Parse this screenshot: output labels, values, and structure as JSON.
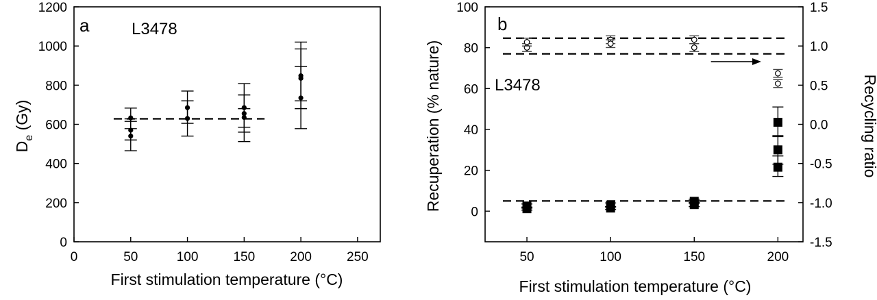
{
  "chart_data": [
    {
      "panel": "a",
      "type": "scatter",
      "annotation_letter": "a",
      "annotation_label": "L3478",
      "xlabel": "First stimulation temperature (°C)",
      "ylabel_main": "D",
      "ylabel_sub": "e",
      "ylabel_unit": " (Gy)",
      "xlim": [
        0,
        270
      ],
      "ylim": [
        0,
        1200
      ],
      "xticks": [
        0,
        50,
        100,
        150,
        200,
        250
      ],
      "yticks": [
        0,
        200,
        400,
        600,
        800,
        1000,
        1200
      ],
      "grid": false,
      "reference_line": {
        "y": 628,
        "x_from": 35,
        "x_to": 168,
        "style": "dashed"
      },
      "points": [
        {
          "x": 50,
          "y": 633,
          "err_low": 578,
          "err_high": 683
        },
        {
          "x": 50,
          "y": 570,
          "err_low": 520,
          "err_high": 628
        },
        {
          "x": 50,
          "y": 540,
          "err_low": 465,
          "err_high": 615
        },
        {
          "x": 100,
          "y": 685,
          "err_low": 605,
          "err_high": 770
        },
        {
          "x": 100,
          "y": 630,
          "err_low": 540,
          "err_high": 720
        },
        {
          "x": 150,
          "y": 685,
          "err_low": 585,
          "err_high": 808
        },
        {
          "x": 150,
          "y": 655,
          "err_low": 560,
          "err_high": 750
        },
        {
          "x": 150,
          "y": 635,
          "err_low": 512,
          "err_high": 680
        },
        {
          "x": 200,
          "y": 848,
          "err_low": 680,
          "err_high": 1020
        },
        {
          "x": 200,
          "y": 835,
          "err_low": 720,
          "err_high": 985
        },
        {
          "x": 200,
          "y": 735,
          "err_low": 578,
          "err_high": 895
        }
      ]
    },
    {
      "panel": "b",
      "type": "scatter",
      "annotation_letter": "b",
      "annotation_label": "L3478",
      "xlabel": "First stimulation temperature (°C)",
      "ylabel_left": "Recuperation (% nature)",
      "ylabel_right": "Recycling ratio",
      "xlim": [
        25,
        215
      ],
      "ylim_left": [
        -15,
        100
      ],
      "ylim_right": [
        -1.5,
        1.5
      ],
      "xticks": [
        50,
        100,
        150,
        200
      ],
      "yticks_left": [
        0,
        20,
        40,
        60,
        80,
        100
      ],
      "yticks_right": [
        -1.5,
        -1.0,
        -0.5,
        0.0,
        0.5,
        1.0,
        1.5
      ],
      "ytick_labels_right": [
        "-1.5",
        "-1.0",
        "-0.5",
        "0.0",
        "0.5",
        "1.0",
        "1.5"
      ],
      "grid": false,
      "reference_lines": [
        {
          "y": 5,
          "axis": "left",
          "style": "dashed"
        },
        {
          "y": 1.1,
          "axis": "right",
          "style": "dashed"
        },
        {
          "y": 0.9,
          "axis": "right",
          "style": "dashed"
        }
      ],
      "arrow": {
        "x_from": 160,
        "x_to": 190,
        "y_right": 0.8,
        "points_to": "right-axis"
      },
      "series": [
        {
          "name": "",
          "marker": "filled-square",
          "axis": "left",
          "points": [
            {
              "x": 50,
              "y": 2.5,
              "err_low": 1.5,
              "err_high": 3.5
            },
            {
              "x": 50,
              "y": 1.2,
              "err_low": 0.5,
              "err_high": 2
            },
            {
              "x": 100,
              "y": 3,
              "err_low": 2,
              "err_high": 4
            },
            {
              "x": 100,
              "y": 1.5,
              "err_low": 0.8,
              "err_high": 2.2
            },
            {
              "x": 150,
              "y": 4.8,
              "err_low": 3.8,
              "err_high": 5.8
            },
            {
              "x": 150,
              "y": 3.2,
              "err_low": 2.2,
              "err_high": 4.2
            },
            {
              "x": 200,
              "y": 43.5,
              "err_low": 36.5,
              "err_high": 51
            },
            {
              "x": 200,
              "y": 30,
              "err_low": 23,
              "err_high": 37
            },
            {
              "x": 200,
              "y": 21.5,
              "err_low": 17,
              "err_high": 27
            }
          ]
        },
        {
          "name": "",
          "marker": "open-circle",
          "axis": "right",
          "points": [
            {
              "x": 50,
              "y": 0.98,
              "err_low": 0.93,
              "err_high": 1.03
            },
            {
              "x": 50,
              "y": 1.05,
              "err_low": 1.0,
              "err_high": 1.1
            },
            {
              "x": 100,
              "y": 1.08,
              "err_low": 1.03,
              "err_high": 1.13
            },
            {
              "x": 100,
              "y": 1.03,
              "err_low": 0.98,
              "err_high": 1.08
            },
            {
              "x": 150,
              "y": 1.08,
              "err_low": 1.03,
              "err_high": 1.13
            },
            {
              "x": 150,
              "y": 0.98,
              "err_low": 0.93,
              "err_high": 1.03
            },
            {
              "x": 200,
              "y": 0.65,
              "err_low": 0.6,
              "err_high": 0.7
            },
            {
              "x": 200,
              "y": 0.52,
              "err_low": 0.47,
              "err_high": 0.57
            }
          ]
        }
      ]
    }
  ]
}
